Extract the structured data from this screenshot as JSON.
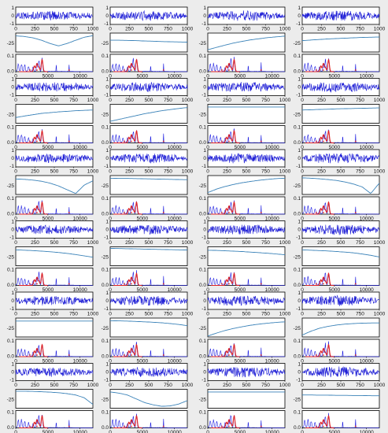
{
  "figure": {
    "background": "#ececec",
    "row_count": 6,
    "column_count": 4
  },
  "colors": {
    "waveform": "#1f1fd6",
    "envelope": "#3a82b8",
    "spectrum": "#1a1ae0",
    "highlight": "#e02020",
    "axes": "#000000",
    "cell_bg": "#ffffff"
  },
  "chart_data": [
    {
      "type": "line",
      "panel": "waveform",
      "xlim": [
        0,
        1000
      ],
      "ylim": [
        -1,
        1
      ],
      "x_ticks": [
        "0",
        "250",
        "500",
        "750",
        "1000"
      ],
      "y_ticks": [
        "1",
        "0",
        "-1"
      ],
      "series": [
        {
          "color": "#1f1fd6"
        }
      ]
    },
    {
      "type": "line",
      "panel": "envelope",
      "ylim": [
        -40,
        0
      ],
      "y_ticks": [
        "-25"
      ],
      "series": [
        {
          "color": "#3a82b8"
        }
      ]
    },
    {
      "type": "line",
      "panel": "spectrum",
      "xlim": [
        0,
        12000
      ],
      "ylim": [
        0,
        0.1
      ],
      "x_ticks": [
        "0",
        "5000",
        "10000"
      ],
      "y_ticks": [
        "0.1",
        "0.0"
      ],
      "peaks_x": [
        400,
        900,
        1400,
        2000,
        2700,
        3300,
        3600,
        4100,
        6300,
        8300
      ],
      "highlight_peaks_x": [
        2900,
        3300,
        3600,
        4100
      ],
      "series": [
        {
          "color": "#1a1ae0"
        },
        {
          "color": "#e02020"
        }
      ]
    }
  ]
}
